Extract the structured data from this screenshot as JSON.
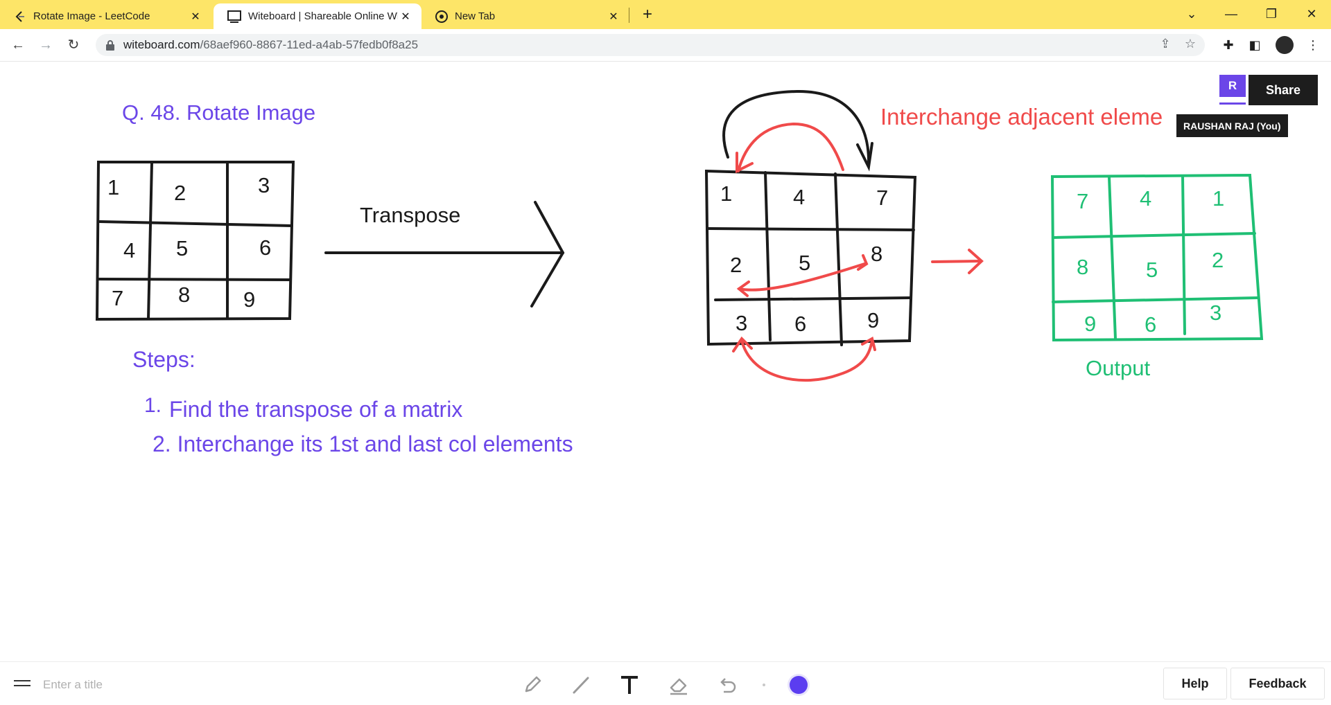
{
  "browser": {
    "tabs": [
      {
        "title": "Rotate Image - LeetCode",
        "icon": "leetcode-icon"
      },
      {
        "title": "Witeboard | Shareable Online Wh",
        "icon": "witeboard-icon",
        "active": true
      },
      {
        "title": "New Tab",
        "icon": "chrome-icon"
      }
    ],
    "url_host": "witeboard.com",
    "url_path": "/68aef960-8867-11ed-a4ab-57fedb0f8a25"
  },
  "board": {
    "question": "Q.  48. Rotate Image",
    "transpose_label": "Transpose",
    "interchange_label": "Interchange adjacent eleme",
    "steps_heading": "Steps:",
    "step1_num": "1.",
    "step1_text": "Find the transpose of a matrix",
    "step2_text": "2. Interchange its 1st and last col elements",
    "output_label": "Output",
    "matrix_original": [
      [
        "1",
        "2",
        "3"
      ],
      [
        "4",
        "5",
        "6"
      ],
      [
        "7",
        "8",
        "9"
      ]
    ],
    "matrix_transposed": [
      [
        "1",
        "4",
        "7"
      ],
      [
        "2",
        "5",
        "8"
      ],
      [
        "3",
        "6",
        "9"
      ]
    ],
    "matrix_output": [
      [
        "7",
        "4",
        "1"
      ],
      [
        "8",
        "5",
        "2"
      ],
      [
        "9",
        "6",
        "3"
      ]
    ],
    "colors": {
      "purple": "#6b46e8",
      "red": "#f04a4a",
      "green": "#1fbf74",
      "ink": "#1a1a1a"
    }
  },
  "collab": {
    "avatar_letter": "R",
    "share_label": "Share",
    "user_tooltip": "RAUSHAN RAJ (You)"
  },
  "bottom": {
    "title_placeholder": "Enter a title",
    "help_label": "Help",
    "feedback_label": "Feedback",
    "active_color": "#5b3df0"
  }
}
